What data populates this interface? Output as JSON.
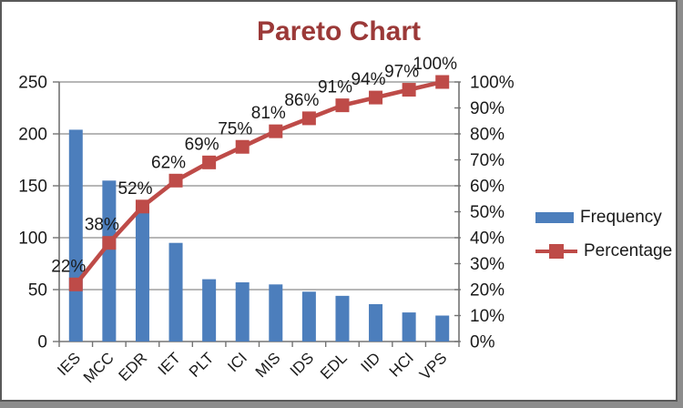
{
  "title": "Pareto Chart",
  "colors": {
    "bar": "#4c7ebc",
    "line": "#be4b48",
    "title": "#9b3938",
    "grid": "#8c8c8c",
    "axis": "#737373",
    "text": "#1a1a1a"
  },
  "legend": {
    "position": "right-middle",
    "items": [
      {
        "label": "Frequency",
        "swatch": "bar"
      },
      {
        "label": "Percentage",
        "swatch": "line-marker"
      }
    ]
  },
  "chart_data": {
    "type": "bar+line (pareto combo)",
    "title": "Pareto Chart",
    "categories": [
      "IES",
      "MCC",
      "EDR",
      "IET",
      "PLT",
      "ICI",
      "MIS",
      "IDS",
      "EDL",
      "IID",
      "HCI",
      "VPS"
    ],
    "series": [
      {
        "name": "Frequency",
        "type": "bar",
        "axis": "left",
        "values": [
          204,
          155,
          130,
          95,
          60,
          57,
          55,
          48,
          44,
          36,
          28,
          25
        ]
      },
      {
        "name": "Percentage",
        "type": "line",
        "axis": "right",
        "marker": "square",
        "values": [
          22,
          38,
          52,
          62,
          69,
          75,
          81,
          86,
          91,
          94,
          97,
          100
        ],
        "point_labels": [
          "22%",
          "38%",
          "52%",
          "62%",
          "69%",
          "75%",
          "81%",
          "86%",
          "91%",
          "94%",
          "97%",
          "100%"
        ]
      }
    ],
    "left_axis": {
      "min": 0,
      "max": 250,
      "step": 50,
      "tick_labels": [
        "0",
        "50",
        "100",
        "150",
        "200",
        "250"
      ]
    },
    "right_axis": {
      "min": 0,
      "max": 100,
      "step": 10,
      "tick_labels": [
        "0%",
        "10%",
        "20%",
        "30%",
        "40%",
        "50%",
        "60%",
        "70%",
        "80%",
        "90%",
        "100%"
      ]
    },
    "grid": "horizontal gridlines at left-axis major steps (every 50)",
    "x_tick_label_rotation": -45,
    "legend_position": "right"
  }
}
